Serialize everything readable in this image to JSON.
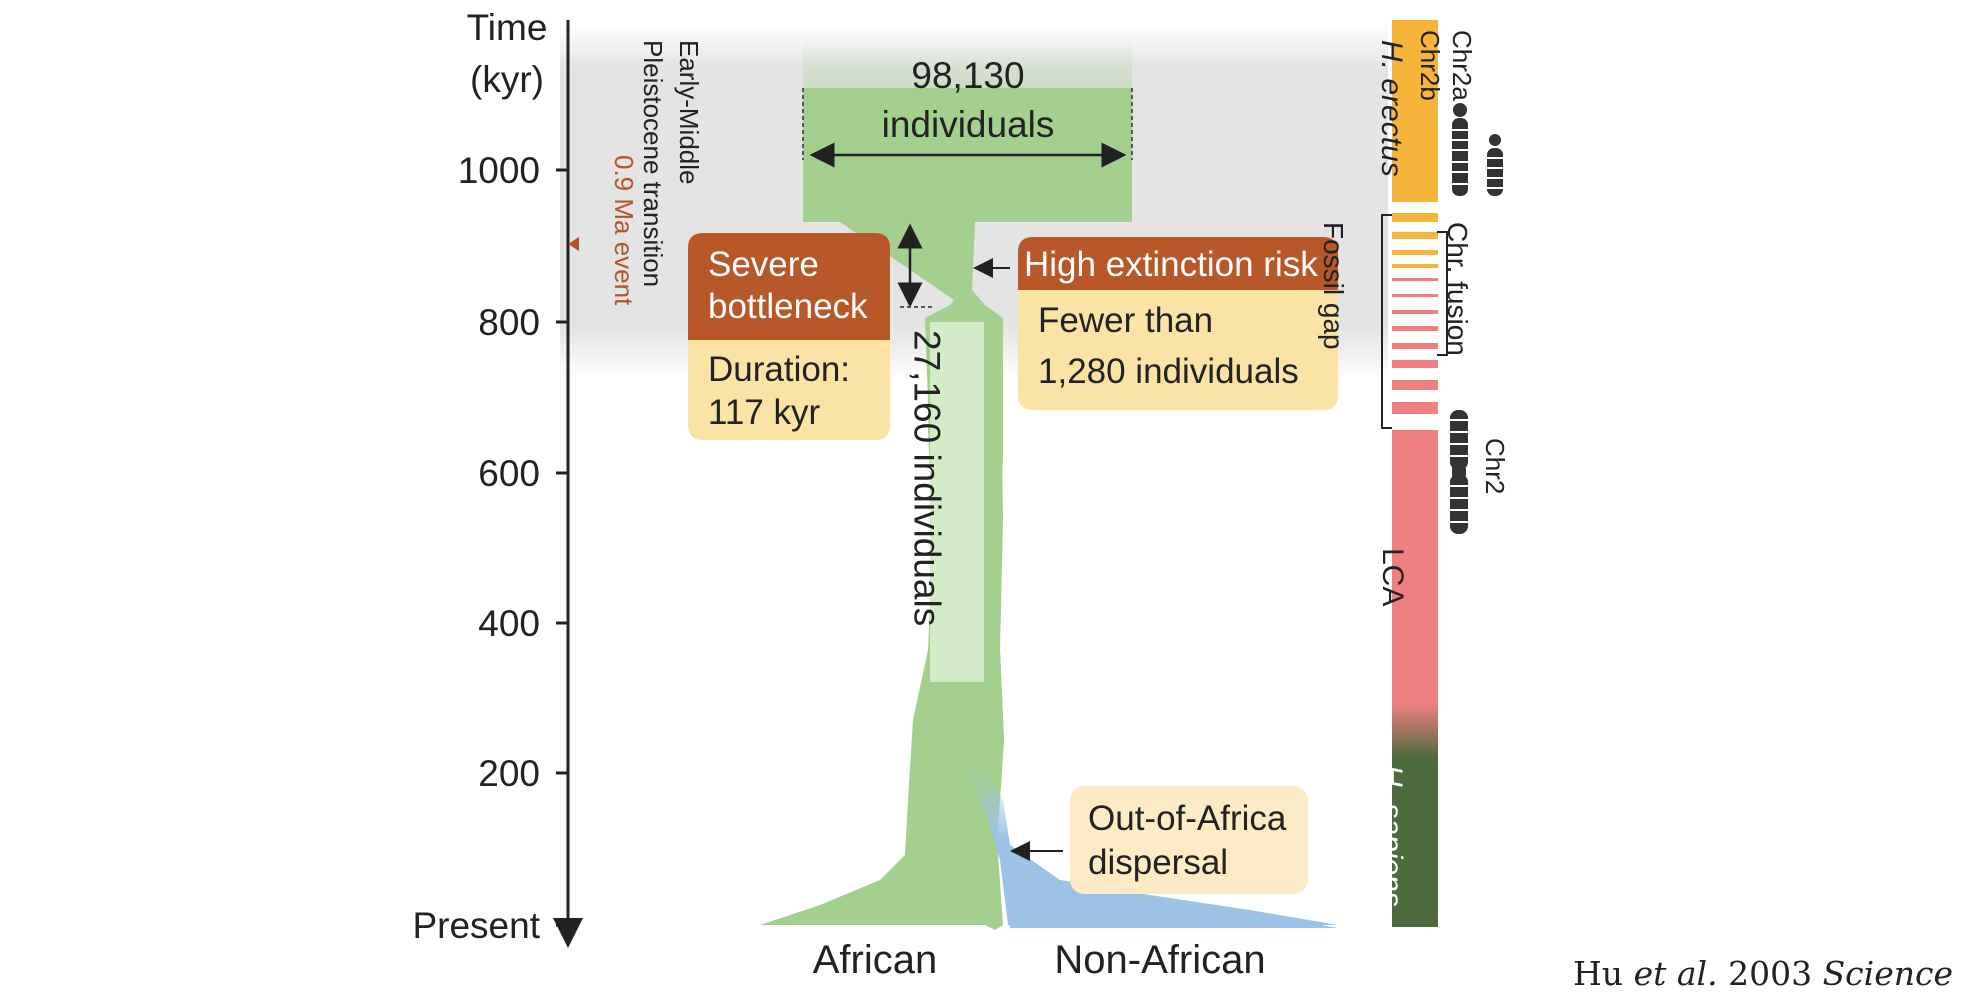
{
  "axis": {
    "title_line1": "Time",
    "title_line2": "(kyr)",
    "ticks": [
      "1000",
      "800",
      "600",
      "400",
      "200"
    ],
    "bottom_label": "Present"
  },
  "transition": {
    "line1": "Early-Middle",
    "line2": "Pleistocene transition"
  },
  "event": {
    "line1": "0.9 Ma event",
    "line2": "",
    "color": "#b6532a"
  },
  "ancestral": {
    "value": "98,130",
    "unit": "individuals"
  },
  "bottleneck": {
    "title_line1": "Severe",
    "title_line2": "bottleneck",
    "body_line1": "Duration:",
    "body_line2": "117 kyr"
  },
  "extinction": {
    "title": "High extinction risk",
    "body_line1": "Fewer than",
    "body_line2": "1,280 individuals"
  },
  "stem": {
    "label": "27,160 individuals"
  },
  "dispersal": {
    "line1": "Out-of-Africa",
    "line2": "dispersal"
  },
  "populations": {
    "african": "African",
    "non_african": "Non-African"
  },
  "side_bar": {
    "erectus_label": "H. erectus",
    "lca_label": "LCA",
    "sapiens_label": "H. sapiens",
    "fossil_gap": "Fossil gap",
    "fusion": "Chr. fusion",
    "chr2a": "Chr2a",
    "chr2b": "Chr2b",
    "chr2": "Chr2"
  },
  "citation": {
    "authors": "Hu",
    "etal": "et al.",
    "year": "2003",
    "journal": "Science"
  },
  "colors": {
    "green": "#a3cf8f",
    "blue": "#9dc3e6",
    "rust": "#b85727",
    "cream": "#fae3a4",
    "light_cream": "#fdebc5",
    "orange": "#f6b53a",
    "pink": "#ef7f80",
    "dark_green": "#4d6b3c",
    "gray_band": "#e3e3e3"
  }
}
